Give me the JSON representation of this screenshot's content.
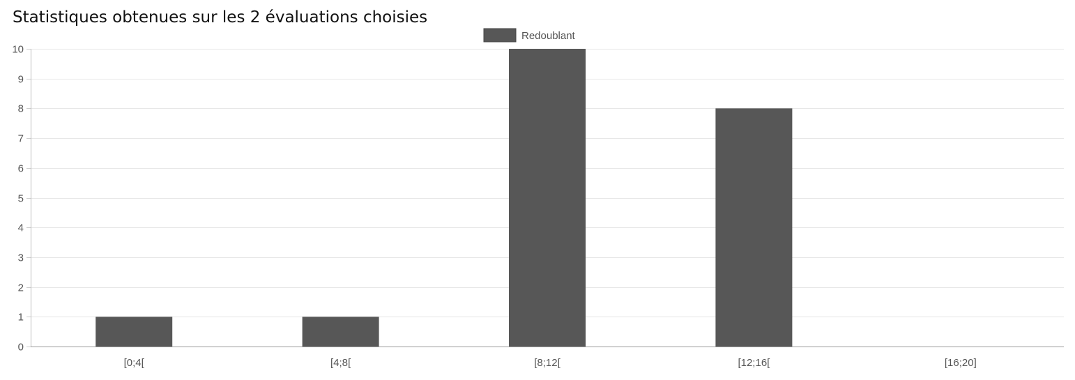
{
  "page": {
    "title": "Statistiques obtenues sur les 2 évaluations choisies"
  },
  "chart_data": {
    "type": "bar",
    "categories": [
      "[0;4[",
      "[4;8[",
      "[8;12[",
      "[12;16[",
      "[16;20]"
    ],
    "series": [
      {
        "name": "Redoublant",
        "values": [
          1,
          1,
          10,
          8,
          0
        ],
        "color": "#575757"
      }
    ],
    "title": "",
    "xlabel": "",
    "ylabel": "",
    "ylim": [
      0,
      10
    ],
    "yticks": [
      0,
      1,
      2,
      3,
      4,
      5,
      6,
      7,
      8,
      9,
      10
    ],
    "grid": true,
    "legend": "top-center"
  }
}
